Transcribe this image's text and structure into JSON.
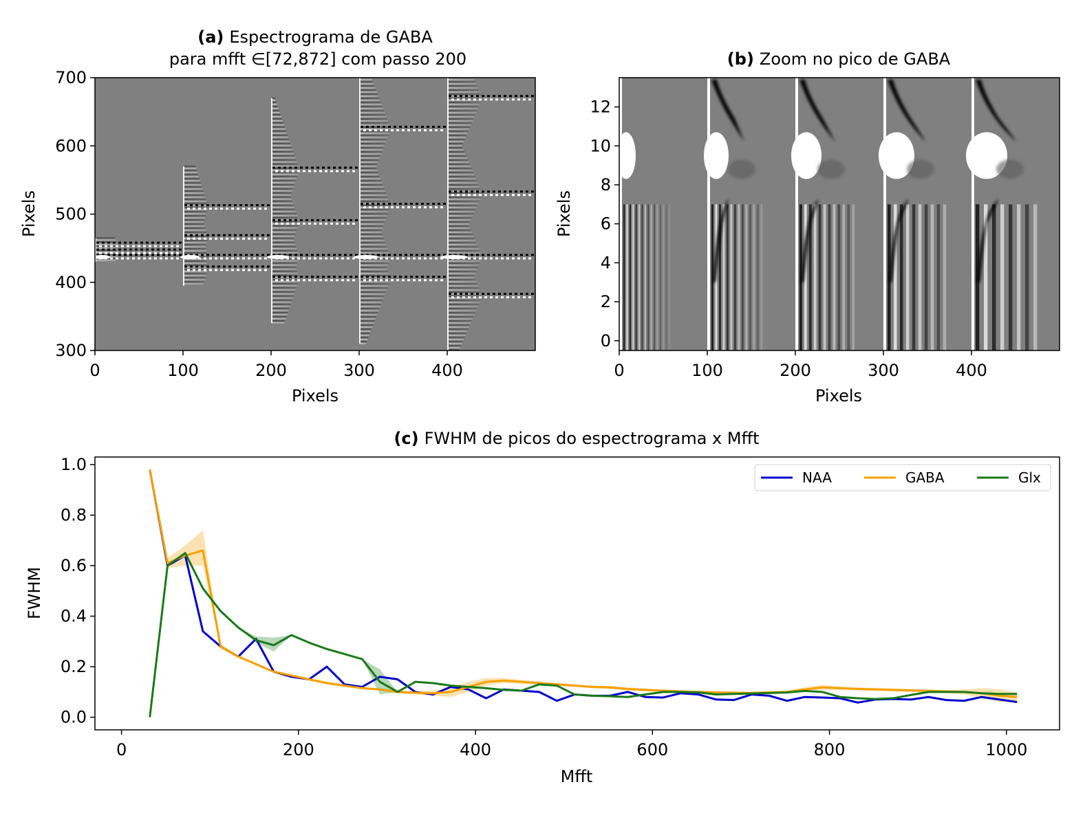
{
  "figure": {
    "panel_a": {
      "title_bold": "(a)",
      "title_rest": "Espectrograma de GABA",
      "title_line2": "para mfft ∈[72,872] com passo 200",
      "xlabel": "Pixels",
      "ylabel": "Pixels"
    },
    "panel_b": {
      "title_bold": "(b)",
      "title_rest": "Zoom no pico de GABA",
      "xlabel": "Pixels",
      "ylabel": "Pixels"
    },
    "panel_c": {
      "title_bold": "(c)",
      "title_rest": "FWHM de picos do espectrograma x Mfft",
      "xlabel": "Mfft",
      "ylabel": "FWHM"
    }
  },
  "chart_data": [
    {
      "type": "heatmap",
      "panel": "a",
      "title": "(a) Espectrograma de GABA para mfft ∈[72,872] com passo 200",
      "xlabel": "Pixels",
      "ylabel": "Pixels",
      "xlim": [
        0,
        500
      ],
      "ylim": [
        300,
        700
      ],
      "xticks": [
        0,
        100,
        200,
        300,
        400
      ],
      "yticks": [
        300,
        400,
        500,
        600,
        700
      ],
      "colormap": "gray",
      "blocks": [
        {
          "x_start": 0,
          "x_end": 100,
          "y_min": 430,
          "y_max": 465,
          "peaks": [
            437,
            445,
            455
          ]
        },
        {
          "x_start": 100,
          "x_end": 200,
          "y_min": 395,
          "y_max": 570,
          "peaks": [
            420,
            437,
            466,
            510
          ]
        },
        {
          "x_start": 200,
          "x_end": 300,
          "y_min": 340,
          "y_max": 670,
          "peaks": [
            405,
            437,
            488,
            565
          ]
        },
        {
          "x_start": 300,
          "x_end": 400,
          "y_min": 310,
          "y_max": 700,
          "peaks": [
            405,
            437,
            512,
            625
          ]
        },
        {
          "x_start": 400,
          "x_end": 500,
          "y_min": 300,
          "y_max": 700,
          "peaks": [
            380,
            437,
            530,
            670
          ]
        }
      ]
    },
    {
      "type": "heatmap",
      "panel": "b",
      "title": "(b) Zoom no pico de GABA",
      "xlabel": "Pixels",
      "ylabel": "Pixels",
      "xlim": [
        0,
        500
      ],
      "ylim": [
        -0.5,
        13.5
      ],
      "xticks": [
        0,
        100,
        200,
        300,
        400
      ],
      "yticks": [
        0,
        2,
        4,
        6,
        8,
        10,
        12
      ],
      "colormap": "gray",
      "block_starts": [
        0,
        100,
        200,
        300,
        400
      ]
    },
    {
      "type": "line",
      "panel": "c",
      "title": "(c) FWHM de picos do espectrograma x Mfft",
      "xlabel": "Mfft",
      "ylabel": "FWHM",
      "xlim": [
        -30,
        1060
      ],
      "ylim": [
        -0.05,
        1.03
      ],
      "xticks": [
        0,
        200,
        400,
        600,
        800,
        1000
      ],
      "yticks": [
        0.0,
        0.2,
        0.4,
        0.6,
        0.8,
        1.0
      ],
      "legend_position": "top-right",
      "x": [
        32,
        52,
        72,
        92,
        112,
        132,
        152,
        172,
        192,
        212,
        232,
        252,
        272,
        292,
        312,
        332,
        352,
        372,
        392,
        412,
        432,
        452,
        472,
        492,
        512,
        532,
        552,
        572,
        592,
        612,
        632,
        652,
        672,
        692,
        712,
        732,
        752,
        772,
        792,
        812,
        832,
        852,
        872,
        892,
        912,
        932,
        952,
        972,
        992,
        1012
      ],
      "series": [
        {
          "name": "NAA",
          "color": "#0000cc",
          "values": [
            0.98,
            0.6,
            0.64,
            0.34,
            0.28,
            0.24,
            0.31,
            0.18,
            0.16,
            0.15,
            0.2,
            0.13,
            0.12,
            0.16,
            0.15,
            0.1,
            0.09,
            0.12,
            0.11,
            0.075,
            0.11,
            0.105,
            0.1,
            0.065,
            0.09,
            0.085,
            0.085,
            0.1,
            0.08,
            0.078,
            0.095,
            0.09,
            0.07,
            0.068,
            0.09,
            0.085,
            0.065,
            0.08,
            0.078,
            0.075,
            0.058,
            0.07,
            0.072,
            0.07,
            0.08,
            0.068,
            0.065,
            0.08,
            0.07,
            0.06
          ],
          "band": []
        },
        {
          "name": "GABA",
          "color": "#f5a000",
          "values": [
            0.98,
            0.61,
            0.64,
            0.66,
            0.28,
            0.24,
            0.21,
            0.18,
            0.165,
            0.15,
            0.135,
            0.125,
            0.115,
            0.11,
            0.1,
            0.097,
            0.095,
            0.1,
            0.12,
            0.14,
            0.145,
            0.14,
            0.135,
            0.13,
            0.125,
            0.12,
            0.118,
            0.112,
            0.108,
            0.105,
            0.102,
            0.1,
            0.098,
            0.097,
            0.096,
            0.098,
            0.1,
            0.11,
            0.118,
            0.115,
            0.112,
            0.11,
            0.108,
            0.106,
            0.104,
            0.102,
            0.1,
            0.095,
            0.085,
            0.08
          ],
          "band_low": [
            0.98,
            0.59,
            0.6,
            0.6,
            0.27,
            0.235,
            0.205,
            0.175,
            0.16,
            0.145,
            0.13,
            0.12,
            0.11,
            0.105,
            0.095,
            0.09,
            0.085,
            0.08,
            0.1,
            0.125,
            0.135,
            0.132,
            0.128,
            0.124,
            0.12,
            0.115,
            0.112,
            0.106,
            0.102,
            0.1,
            0.097,
            0.095,
            0.093,
            0.092,
            0.091,
            0.092,
            0.094,
            0.102,
            0.108,
            0.108,
            0.106,
            0.104,
            0.102,
            0.1,
            0.098,
            0.096,
            0.09,
            0.075,
            0.06,
            0.062
          ],
          "band_high": [
            0.98,
            0.63,
            0.68,
            0.74,
            0.29,
            0.245,
            0.215,
            0.185,
            0.17,
            0.155,
            0.14,
            0.13,
            0.12,
            0.115,
            0.105,
            0.104,
            0.105,
            0.12,
            0.14,
            0.155,
            0.155,
            0.148,
            0.142,
            0.136,
            0.13,
            0.125,
            0.124,
            0.118,
            0.114,
            0.11,
            0.107,
            0.105,
            0.103,
            0.102,
            0.101,
            0.104,
            0.106,
            0.118,
            0.128,
            0.122,
            0.118,
            0.116,
            0.114,
            0.112,
            0.11,
            0.108,
            0.11,
            0.115,
            0.11,
            0.098
          ]
        },
        {
          "name": "Glx",
          "color": "#1a7a1a",
          "values": [
            0.0,
            0.6,
            0.65,
            0.51,
            0.42,
            0.355,
            0.305,
            0.285,
            0.325,
            0.295,
            0.27,
            0.25,
            0.23,
            0.14,
            0.1,
            0.14,
            0.135,
            0.125,
            0.12,
            0.115,
            0.108,
            0.105,
            0.13,
            0.125,
            0.09,
            0.085,
            0.083,
            0.08,
            0.09,
            0.1,
            0.1,
            0.098,
            0.09,
            0.092,
            0.094,
            0.096,
            0.098,
            0.104,
            0.1,
            0.08,
            0.075,
            0.072,
            0.075,
            0.088,
            0.1,
            0.1,
            0.1,
            0.095,
            0.092,
            0.092
          ],
          "band_low": [
            0.0,
            0.6,
            0.65,
            0.51,
            0.42,
            0.355,
            0.295,
            0.26,
            0.325,
            0.295,
            0.27,
            0.25,
            0.23,
            0.09,
            0.1,
            0.14,
            0.135,
            0.125,
            0.12,
            0.115,
            0.108,
            0.105,
            0.13,
            0.125,
            0.09,
            0.085,
            0.083,
            0.08,
            0.09,
            0.1,
            0.1,
            0.098,
            0.09,
            0.092,
            0.094,
            0.096,
            0.098,
            0.104,
            0.1,
            0.08,
            0.075,
            0.072,
            0.075,
            0.088,
            0.1,
            0.1,
            0.1,
            0.095,
            0.092,
            0.092
          ],
          "band_high": [
            0.0,
            0.6,
            0.65,
            0.51,
            0.42,
            0.355,
            0.32,
            0.315,
            0.325,
            0.295,
            0.27,
            0.25,
            0.23,
            0.19,
            0.1,
            0.14,
            0.135,
            0.125,
            0.12,
            0.115,
            0.108,
            0.105,
            0.13,
            0.125,
            0.09,
            0.085,
            0.083,
            0.08,
            0.09,
            0.1,
            0.1,
            0.098,
            0.09,
            0.092,
            0.094,
            0.096,
            0.098,
            0.104,
            0.1,
            0.08,
            0.075,
            0.072,
            0.075,
            0.088,
            0.1,
            0.1,
            0.1,
            0.095,
            0.092,
            0.092
          ]
        }
      ]
    }
  ]
}
